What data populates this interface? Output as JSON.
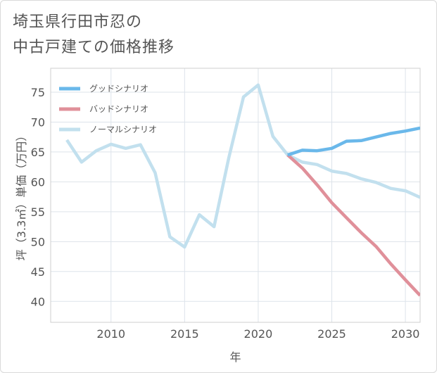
{
  "title_lines": [
    "埼玉県行田市忍の",
    "中古戸建ての価格推移"
  ],
  "chart_data": {
    "type": "line",
    "xlabel": "年",
    "ylabel": "坪（3.3㎡）単価（万円）",
    "xlim": [
      2005.9,
      2031
    ],
    "ylim": [
      36.5,
      79
    ],
    "x_ticks": [
      2010,
      2015,
      2020,
      2025,
      2030
    ],
    "y_ticks": [
      40,
      45,
      50,
      55,
      60,
      65,
      70,
      75
    ],
    "grid": true,
    "legend_position": "top-left",
    "series": [
      {
        "name": "グッドシナリオ",
        "color": "#6ab8ea",
        "x": [
          2022,
          2023,
          2024,
          2025,
          2026,
          2027,
          2028,
          2029,
          2030,
          2031
        ],
        "y": [
          64.5,
          65.3,
          65.2,
          65.6,
          66.8,
          66.9,
          67.5,
          68.1,
          68.5,
          69.0
        ]
      },
      {
        "name": "バッドシナリオ",
        "color": "#e0909a",
        "x": [
          2022,
          2023,
          2024,
          2025,
          2026,
          2027,
          2028,
          2029,
          2030,
          2031
        ],
        "y": [
          64.5,
          62.3,
          59.5,
          56.5,
          54.0,
          51.5,
          49.2,
          46.3,
          43.6,
          41.0
        ]
      },
      {
        "name": "ノーマルシナリオ",
        "color": "#c2e0ee",
        "x": [
          2007,
          2008,
          2009,
          2010,
          2011,
          2012,
          2013,
          2014,
          2015,
          2016,
          2017,
          2018,
          2019,
          2020,
          2021,
          2022,
          2023,
          2024,
          2025,
          2026,
          2027,
          2028,
          2029,
          2030,
          2031
        ],
        "y": [
          67.0,
          63.3,
          65.2,
          66.3,
          65.6,
          66.2,
          61.5,
          50.8,
          49.1,
          54.5,
          52.5,
          64.0,
          74.2,
          76.2,
          67.6,
          64.5,
          63.3,
          62.9,
          61.8,
          61.4,
          60.5,
          59.9,
          58.9,
          58.5,
          57.4
        ]
      }
    ]
  }
}
